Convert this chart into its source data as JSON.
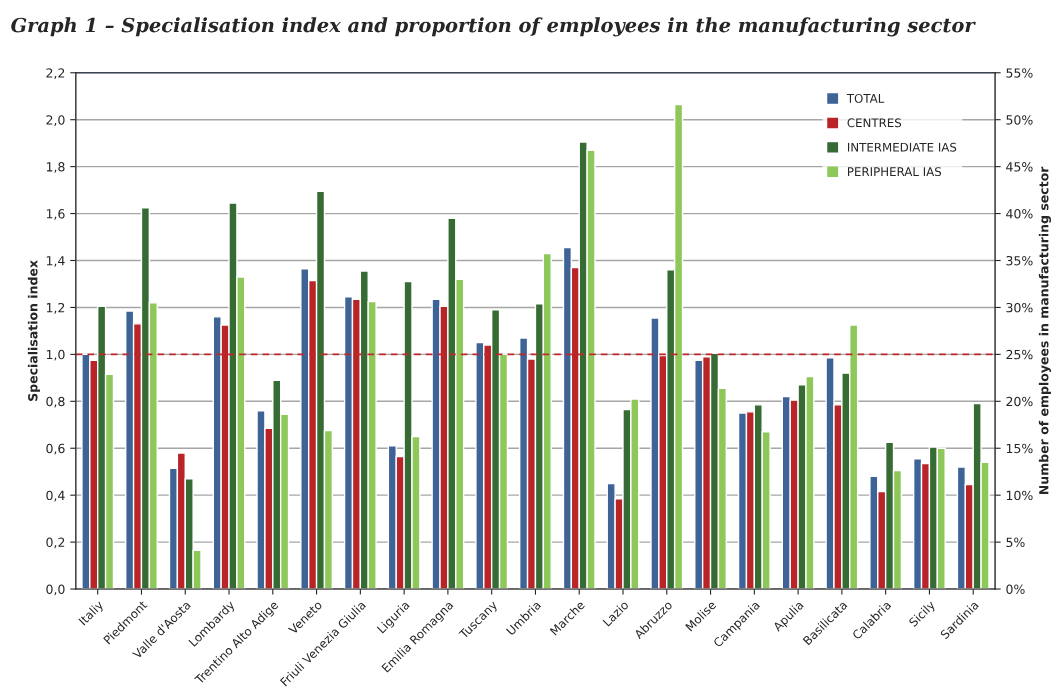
{
  "chart_data": {
    "type": "bar",
    "title": "Graph 1 – Specialisation index and proportion of employees in the manufacturing sector",
    "ylabel": "Specialisation index",
    "y2label": "Number of employees in manufacturing sector",
    "categories": [
      "Italiy",
      "Piedmont",
      "Valle d'Aosta",
      "Lombardy",
      "Trentino Alto Adige",
      "Veneto",
      "Friuli Venezia Giulia",
      "Liguria",
      "Emilia Romagna",
      "Tuscany",
      "Umbria",
      "Marche",
      "Lazio",
      "Abruzzo",
      "Molise",
      "Campania",
      "Apulia",
      "Basilicata",
      "Calabria",
      "Sicily",
      "Sardinia"
    ],
    "series": [
      {
        "name": "TOTAL",
        "color": "#3e6396",
        "values": [
          1.0,
          1.185,
          0.515,
          1.16,
          0.76,
          1.365,
          1.245,
          0.61,
          1.235,
          1.05,
          1.07,
          1.455,
          0.45,
          1.155,
          0.975,
          0.75,
          0.82,
          0.985,
          0.48,
          0.555,
          0.52
        ]
      },
      {
        "name": "CENTRES",
        "color": "#b82428",
        "values": [
          0.975,
          1.13,
          0.58,
          1.125,
          0.685,
          1.315,
          1.235,
          0.565,
          1.205,
          1.04,
          0.98,
          1.37,
          0.385,
          0.995,
          0.99,
          0.755,
          0.805,
          0.785,
          0.415,
          0.535,
          0.445
        ]
      },
      {
        "name": "INTERMEDIATE IAS",
        "color": "#366b34",
        "values": [
          1.205,
          1.625,
          0.47,
          1.645,
          0.89,
          1.695,
          1.355,
          1.31,
          1.58,
          1.19,
          1.215,
          1.905,
          0.765,
          1.36,
          1.005,
          0.785,
          0.87,
          0.92,
          0.625,
          0.605,
          0.79
        ]
      },
      {
        "name": "PERIPHERAL IAS",
        "color": "#8fc85a",
        "values": [
          0.915,
          1.22,
          0.165,
          1.33,
          0.745,
          0.675,
          1.225,
          0.65,
          1.32,
          1.0,
          1.43,
          1.87,
          0.81,
          2.065,
          0.855,
          0.67,
          0.905,
          1.125,
          0.505,
          0.6,
          0.54
        ]
      }
    ],
    "ylim": [
      0,
      2.2
    ],
    "yticks": [
      {
        "value": 0,
        "label": "0,0"
      },
      {
        "value": 0.2,
        "label": "0,2"
      },
      {
        "value": 0.4,
        "label": "0,4"
      },
      {
        "value": 0.6,
        "label": "0,6"
      },
      {
        "value": 0.8,
        "label": "0,8"
      },
      {
        "value": 1.0,
        "label": "1,0"
      },
      {
        "value": 1.2,
        "label": "1,2"
      },
      {
        "value": 1.4,
        "label": "1,4"
      },
      {
        "value": 1.6,
        "label": "1,6"
      },
      {
        "value": 1.8,
        "label": "1,8"
      },
      {
        "value": 2.0,
        "label": "2,0"
      },
      {
        "value": 2.2,
        "label": "2,2"
      }
    ],
    "y2lim": [
      0,
      55
    ],
    "y2ticks": [
      {
        "value": 0,
        "label": "0%"
      },
      {
        "value": 5,
        "label": "5%"
      },
      {
        "value": 10,
        "label": "10%"
      },
      {
        "value": 15,
        "label": "15%"
      },
      {
        "value": 20,
        "label": "20%"
      },
      {
        "value": 25,
        "label": "25%"
      },
      {
        "value": 30,
        "label": "30%"
      },
      {
        "value": 35,
        "label": "35%"
      },
      {
        "value": 40,
        "label": "40%"
      },
      {
        "value": 45,
        "label": "45%"
      },
      {
        "value": 50,
        "label": "50%"
      },
      {
        "value": 55,
        "label": "55%"
      }
    ],
    "ref_lines": [
      {
        "axis": "y",
        "value": 1.0,
        "color": "#c0282d",
        "line_style": "dashed"
      }
    ],
    "grid": "y",
    "legend": "top right"
  }
}
